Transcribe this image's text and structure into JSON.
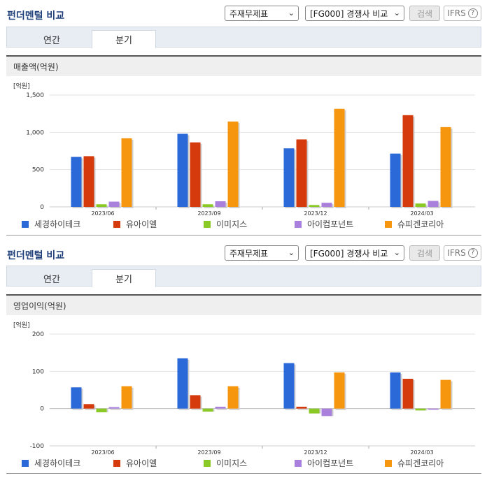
{
  "colors": {
    "세경하이테크": "#2b68d8",
    "유아이엘": "#d43a0b",
    "이미지스": "#8ac926",
    "아이컴포넌트": "#a980dc",
    "슈피겐코리아": "#f6960f"
  },
  "sections": [
    {
      "title": "펀더멘털 비교",
      "select_statement": "주재무제표",
      "select_group": "[FG000] 경쟁사 비교",
      "search_label": "검색",
      "ifrs_label": "IFRS",
      "help_icon": "?",
      "tabs": [
        "연간",
        "분기"
      ],
      "active_tab": "분기",
      "panel_title": "매출액(억원)",
      "unit_label": "[억원]"
    },
    {
      "title": "펀더멘털 비교",
      "select_statement": "주재무제표",
      "select_group": "[FG000] 경쟁사 비교",
      "search_label": "검색",
      "ifrs_label": "IFRS",
      "help_icon": "?",
      "tabs": [
        "연간",
        "분기"
      ],
      "active_tab": "분기",
      "panel_title": "영업이익(억원)",
      "unit_label": "[억원]"
    }
  ],
  "chart_data": [
    {
      "type": "bar",
      "title": "매출액(억원)",
      "ylabel": "[억원]",
      "categories": [
        "2023/06",
        "2023/09",
        "2023/12",
        "2024/03"
      ],
      "ylim": [
        0,
        1500
      ],
      "yticks": [
        "0",
        "500",
        "1,000",
        "1,500"
      ],
      "ytick_values": [
        0,
        500,
        1000,
        1500
      ],
      "grid": true,
      "legend": "bottom",
      "series": [
        {
          "name": "세경하이테크",
          "values": [
            670,
            980,
            785,
            715
          ]
        },
        {
          "name": "유아이엘",
          "values": [
            680,
            865,
            905,
            1230
          ]
        },
        {
          "name": "이미지스",
          "values": [
            35,
            35,
            25,
            45
          ]
        },
        {
          "name": "아이컴포넌트",
          "values": [
            70,
            75,
            55,
            80
          ]
        },
        {
          "name": "슈피겐코리아",
          "values": [
            920,
            1145,
            1315,
            1070
          ]
        }
      ]
    },
    {
      "type": "bar",
      "title": "영업이익(억원)",
      "ylabel": "[억원]",
      "categories": [
        "2023/06",
        "2023/09",
        "2023/12",
        "2024/03"
      ],
      "ylim": [
        -100,
        200
      ],
      "yticks": [
        "-100",
        "0",
        "100",
        "200"
      ],
      "ytick_values": [
        -100,
        0,
        100,
        200
      ],
      "grid": true,
      "legend": "bottom",
      "series": [
        {
          "name": "세경하이테크",
          "values": [
            57,
            135,
            122,
            97
          ]
        },
        {
          "name": "유아이엘",
          "values": [
            12,
            36,
            5,
            80
          ]
        },
        {
          "name": "이미지스",
          "values": [
            -10,
            -8,
            -13,
            -5
          ]
        },
        {
          "name": "아이컴포넌트",
          "values": [
            4,
            5,
            -20,
            -3
          ]
        },
        {
          "name": "슈피겐코리아",
          "values": [
            60,
            60,
            97,
            77
          ]
        }
      ]
    }
  ]
}
